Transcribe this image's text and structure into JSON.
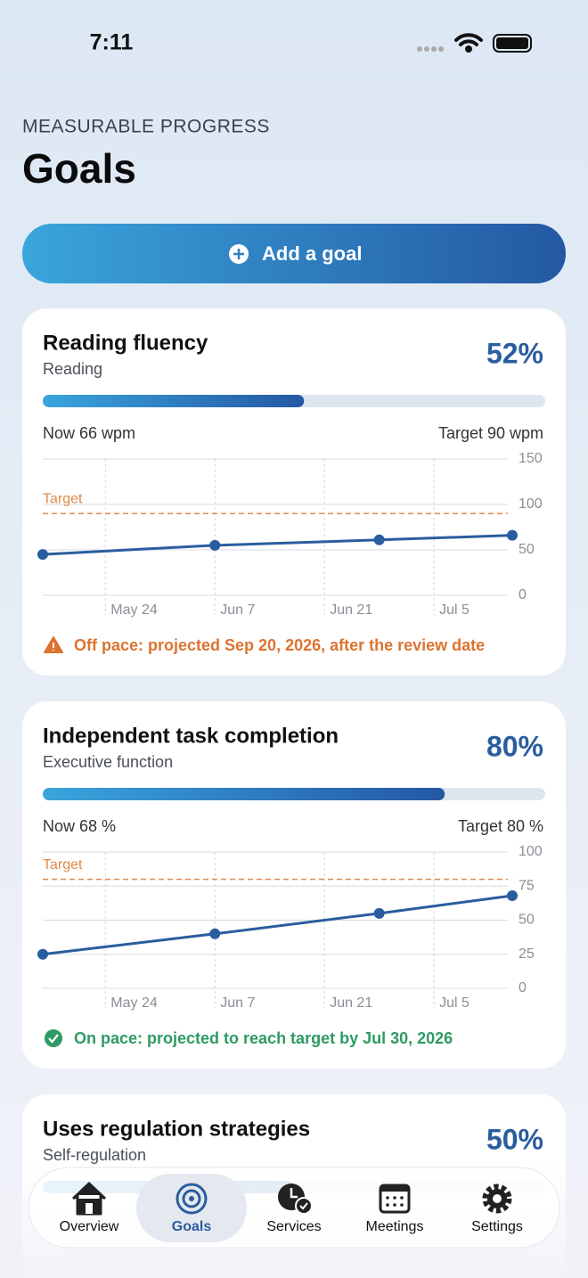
{
  "status_bar": {
    "time": "7:11"
  },
  "header": {
    "eyebrow": "MEASURABLE PROGRESS",
    "title": "Goals"
  },
  "add_button": {
    "label": "Add a goal"
  },
  "goals": [
    {
      "title": "Reading fluency",
      "category": "Reading",
      "percent": 52,
      "percent_label": "52%",
      "now": "Now 66 wpm",
      "target_text": "Target 90 wpm",
      "chart": {
        "type": "line",
        "color": "#2a5d9f",
        "x": [
          "May 16",
          "Jun 7",
          "Jun 28",
          "Jul 15"
        ],
        "values": [
          45,
          55,
          61,
          66
        ],
        "xlim": [
          "May 16",
          "Jul 15"
        ],
        "xticks": [
          "May 24",
          "Jun 7",
          "Jun 21",
          "Jul 5"
        ],
        "ylim": [
          0,
          150
        ],
        "yticks": [
          0,
          50,
          100,
          150
        ],
        "target": 90,
        "target_label": "Target",
        "target_color": "#e0894a"
      },
      "status": "Off pace: projected Sep 20, 2026, after the review date",
      "status_color": "#dd7330",
      "status_icon": "warning"
    },
    {
      "title": "Independent task completion",
      "category": "Executive function",
      "percent": 80,
      "percent_label": "80%",
      "now": "Now 68 %",
      "target_text": "Target 80 %",
      "chart": {
        "type": "line",
        "color": "#2a5d9f",
        "x": [
          "May 16",
          "Jun 7",
          "Jun 28",
          "Jul 15"
        ],
        "values": [
          25,
          40,
          55,
          68
        ],
        "xlim": [
          "May 16",
          "Jul 15"
        ],
        "xticks": [
          "May 24",
          "Jun 7",
          "Jun 21",
          "Jul 5"
        ],
        "ylim": [
          0,
          100
        ],
        "yticks": [
          0,
          25,
          50,
          75,
          100
        ],
        "target": 80,
        "target_label": "Target",
        "target_color": "#e0894a"
      },
      "status": "On pace: projected to reach target by Jul 30, 2026",
      "status_color": "#2e9a63",
      "status_icon": "check"
    },
    {
      "title": "Uses regulation strategies",
      "category": "Self-regulation",
      "percent": 50,
      "percent_label": "50%"
    }
  ],
  "tabs": [
    {
      "label": "Overview"
    },
    {
      "label": "Goals",
      "selected": true
    },
    {
      "label": "Services"
    },
    {
      "label": "Meetings"
    },
    {
      "label": "Settings"
    }
  ]
}
